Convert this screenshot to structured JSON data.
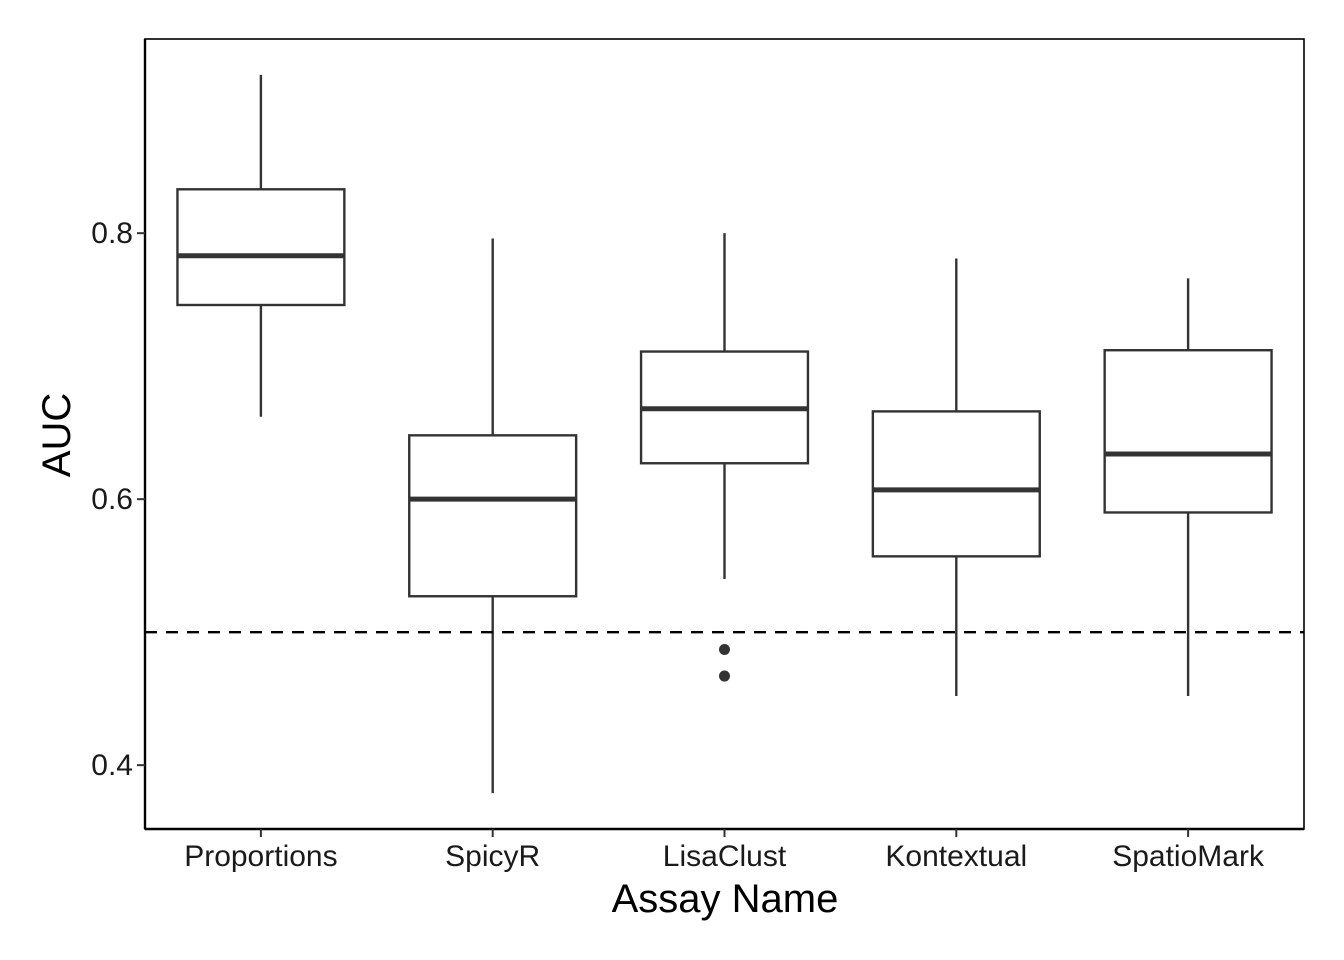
{
  "chart_data": {
    "type": "boxplot",
    "title": "",
    "xlabel": "Assay Name",
    "ylabel": "AUC",
    "ylim": [
      0.352,
      0.946
    ],
    "yticks": [
      0.4,
      0.6,
      0.8
    ],
    "ytick_labels": [
      "0.4",
      "0.6",
      "0.8"
    ],
    "categories": [
      "Proportions",
      "SpicyR",
      "LisaClust",
      "Kontextual",
      "SpatioMark"
    ],
    "boxes": [
      {
        "whisker_low": 0.662,
        "q1": 0.746,
        "median": 0.783,
        "q3": 0.833,
        "whisker_high": 0.919,
        "outliers": []
      },
      {
        "whisker_low": 0.379,
        "q1": 0.527,
        "median": 0.6,
        "q3": 0.648,
        "whisker_high": 0.796,
        "outliers": []
      },
      {
        "whisker_low": 0.54,
        "q1": 0.627,
        "median": 0.668,
        "q3": 0.711,
        "whisker_high": 0.8,
        "outliers": [
          0.487,
          0.467
        ]
      },
      {
        "whisker_low": 0.452,
        "q1": 0.557,
        "median": 0.607,
        "q3": 0.666,
        "whisker_high": 0.781,
        "outliers": []
      },
      {
        "whisker_low": 0.452,
        "q1": 0.59,
        "median": 0.634,
        "q3": 0.712,
        "whisker_high": 0.766,
        "outliers": []
      }
    ],
    "reference_line": {
      "y": 0.5,
      "style": "dashed"
    },
    "grid": false,
    "legend": "none",
    "colors": {
      "box_stroke": "#333333",
      "axis": "#000000",
      "reference": "#000000",
      "background": "#ffffff"
    }
  }
}
